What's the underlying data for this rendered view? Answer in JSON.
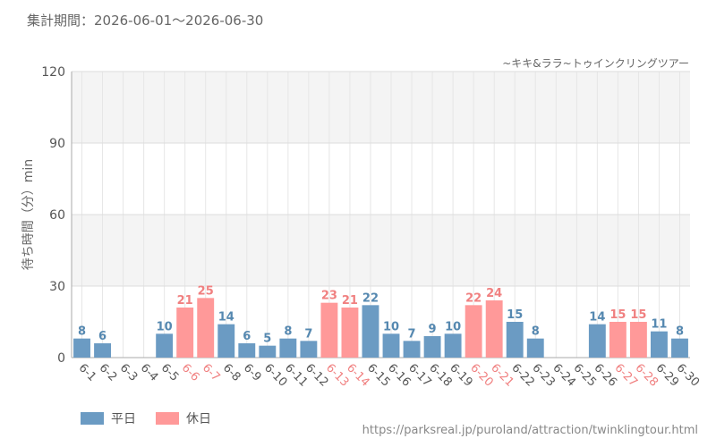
{
  "header": {
    "period": "集計期間：2026-06-01～2026-06-30",
    "attraction": "~キキ&ララ~トゥインクリングツアー"
  },
  "footer": {
    "source_url": "https://parksreal.jp/puroland/attraction/twinklingtour.html"
  },
  "legend": [
    {
      "label": "平日",
      "color": "#6b9bc3"
    },
    {
      "label": "休日",
      "color": "#ff9999"
    }
  ],
  "chart_data": {
    "type": "bar",
    "ylabel": "待ち時間（分）min",
    "ylim": [
      0,
      120
    ],
    "yticks": [
      0,
      30,
      60,
      90,
      120
    ],
    "grid": true,
    "legend_position": "bottom-left",
    "colors": {
      "weekday": "#6b9bc3",
      "holiday": "#ff9999",
      "holiday_label": "#f08080",
      "weekday_label": "#5588b0"
    },
    "categories": [
      "6-1",
      "6-2",
      "6-3",
      "6-4",
      "6-5",
      "6-6",
      "6-7",
      "6-8",
      "6-9",
      "6-10",
      "6-11",
      "6-12",
      "6-13",
      "6-14",
      "6-15",
      "6-16",
      "6-17",
      "6-18",
      "6-19",
      "6-20",
      "6-21",
      "6-22",
      "6-23",
      "6-24",
      "6-25",
      "6-26",
      "6-27",
      "6-28",
      "6-29",
      "6-30"
    ],
    "values": [
      8,
      6,
      null,
      null,
      10,
      21,
      25,
      14,
      6,
      5,
      8,
      7,
      23,
      21,
      22,
      10,
      7,
      9,
      10,
      22,
      24,
      15,
      8,
      null,
      null,
      14,
      15,
      15,
      11,
      8
    ],
    "day_type": [
      "weekday",
      "weekday",
      "weekday",
      "weekday",
      "weekday",
      "holiday",
      "holiday",
      "weekday",
      "weekday",
      "weekday",
      "weekday",
      "weekday",
      "holiday",
      "holiday",
      "weekday",
      "weekday",
      "weekday",
      "weekday",
      "weekday",
      "holiday",
      "holiday",
      "weekday",
      "weekday",
      "weekday",
      "weekday",
      "weekday",
      "holiday",
      "holiday",
      "weekday",
      "weekday"
    ]
  }
}
